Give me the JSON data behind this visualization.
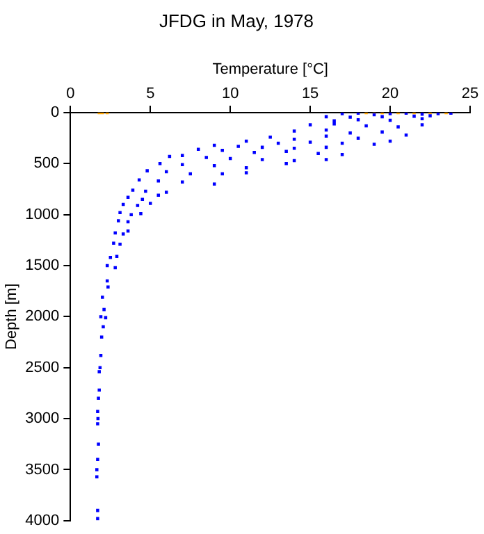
{
  "chart_data": {
    "type": "scatter",
    "title": "JFDG in May, 1978",
    "xlabel": "Temperature [°C]",
    "ylabel": "Depth [m]",
    "xlim": [
      0,
      25
    ],
    "xticks": [
      0,
      5,
      10,
      15,
      20,
      25
    ],
    "ylim": [
      4000,
      0
    ],
    "yticks": [
      0,
      500,
      1000,
      1500,
      2000,
      2500,
      3000,
      3500,
      4000
    ],
    "grid": false,
    "legend": false,
    "marker": "square",
    "series": [
      {
        "color": "#0000ff",
        "x": [
          17,
          18,
          19,
          20,
          21,
          22,
          23,
          23.8,
          16,
          17.5,
          19.5,
          21.5,
          22.5,
          16.5,
          18,
          20,
          22,
          15,
          16.5,
          18.5,
          20.5,
          22,
          14,
          16,
          17.5,
          19.5,
          21,
          12.5,
          14,
          16,
          18,
          20,
          11,
          13,
          15,
          17,
          19,
          9,
          10.5,
          12,
          14,
          16,
          8,
          9.5,
          11.5,
          13.5,
          15.5,
          17,
          7,
          6.2,
          8.5,
          10,
          12,
          14,
          16,
          5.6,
          7,
          9,
          11,
          13.5,
          4.8,
          6,
          7.5,
          9.5,
          11,
          4.3,
          5.5,
          7,
          9,
          3.9,
          4.7,
          6,
          3.6,
          4.5,
          5.5,
          3.3,
          4.2,
          5,
          3.1,
          3.8,
          4.4,
          3,
          3.6,
          2.8,
          3.3,
          3.6,
          2.7,
          3.1,
          2.5,
          2.9,
          2.3,
          2.8,
          2.3,
          2.35,
          2,
          2.1,
          1.9,
          2.2,
          2.05,
          1.95,
          1.9,
          1.85,
          1.8,
          1.8,
          1.75,
          1.7,
          1.72,
          1.7,
          1.75,
          1.7,
          1.65,
          1.65,
          1.7,
          1.7
        ],
        "values": [
          10,
          5,
          20,
          10,
          5,
          15,
          10,
          5,
          40,
          45,
          40,
          35,
          30,
          80,
          70,
          75,
          60,
          120,
          110,
          130,
          140,
          120,
          180,
          170,
          200,
          190,
          220,
          240,
          260,
          230,
          250,
          280,
          280,
          300,
          290,
          300,
          310,
          320,
          330,
          340,
          350,
          340,
          360,
          370,
          390,
          380,
          400,
          410,
          420,
          430,
          440,
          450,
          460,
          470,
          460,
          500,
          510,
          520,
          540,
          500,
          570,
          580,
          600,
          600,
          590,
          660,
          670,
          680,
          700,
          760,
          770,
          780,
          830,
          850,
          810,
          900,
          910,
          890,
          980,
          1000,
          990,
          1060,
          1070,
          1180,
          1190,
          1160,
          1280,
          1290,
          1420,
          1410,
          1500,
          1520,
          1650,
          1710,
          1810,
          1930,
          2000,
          2010,
          2100,
          2200,
          2380,
          2500,
          2540,
          2720,
          2800,
          2930,
          3000,
          3050,
          3250,
          3400,
          3500,
          3570,
          3900,
          3980
        ]
      },
      {
        "color": "#ffa500",
        "x": [
          1.8,
          2,
          2.3,
          18.5,
          19,
          19.5,
          20,
          20.5,
          21,
          21.5,
          22,
          22.5,
          23,
          23.5,
          23.8
        ],
        "values": [
          0,
          0,
          0,
          0,
          0,
          0,
          0,
          0,
          0,
          0,
          0,
          0,
          0,
          0,
          0
        ]
      }
    ]
  }
}
